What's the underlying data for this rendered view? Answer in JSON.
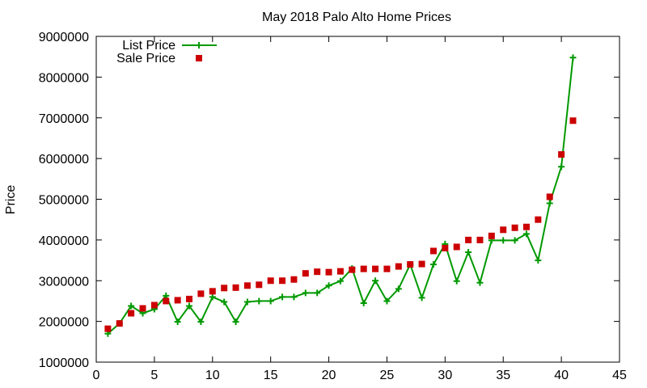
{
  "chart_data": {
    "type": "line",
    "title": "May 2018 Palo Alto Home Prices",
    "xlabel": "",
    "ylabel": "Price",
    "xlim": [
      0,
      45
    ],
    "ylim": [
      1000000,
      9000000
    ],
    "x_ticks": [
      "0",
      "5",
      "10",
      "15",
      "20",
      "25",
      "30",
      "35",
      "40",
      "45"
    ],
    "y_ticks": [
      "1000000",
      "2000000",
      "3000000",
      "4000000",
      "5000000",
      "6000000",
      "7000000",
      "8000000",
      "9000000"
    ],
    "grid": false,
    "legend_position": "top-left",
    "series": [
      {
        "name": "List Price",
        "style": "line+points",
        "color": "#009900",
        "x": [
          1,
          2,
          3,
          4,
          5,
          6,
          7,
          8,
          9,
          10,
          11,
          12,
          13,
          14,
          15,
          16,
          17,
          18,
          19,
          20,
          21,
          22,
          23,
          24,
          25,
          26,
          27,
          28,
          29,
          30,
          31,
          32,
          33,
          34,
          35,
          36,
          37,
          38,
          39,
          40,
          41
        ],
        "y": [
          1700000,
          1950000,
          2380000,
          2200000,
          2300000,
          2630000,
          1990000,
          2380000,
          1990000,
          2600000,
          2480000,
          1990000,
          2480000,
          2500000,
          2500000,
          2600000,
          2600000,
          2700000,
          2700000,
          2880000,
          2990000,
          3300000,
          2450000,
          3000000,
          2500000,
          2800000,
          3400000,
          2580000,
          3400000,
          3900000,
          2990000,
          3700000,
          2950000,
          3990000,
          3990000,
          3990000,
          4150000,
          3500000,
          4900000,
          5800000,
          8480000
        ]
      },
      {
        "name": "Sale Price",
        "style": "points",
        "color": "#cc0000",
        "x": [
          1,
          2,
          3,
          4,
          5,
          6,
          7,
          8,
          9,
          10,
          11,
          12,
          13,
          14,
          15,
          16,
          17,
          18,
          19,
          20,
          21,
          22,
          23,
          24,
          25,
          26,
          27,
          28,
          29,
          30,
          31,
          32,
          33,
          34,
          35,
          36,
          37,
          38,
          39,
          40,
          41
        ],
        "y": [
          1820000,
          1950000,
          2200000,
          2320000,
          2400000,
          2500000,
          2520000,
          2550000,
          2680000,
          2740000,
          2820000,
          2830000,
          2880000,
          2900000,
          3000000,
          3000000,
          3030000,
          3180000,
          3220000,
          3210000,
          3230000,
          3270000,
          3290000,
          3290000,
          3290000,
          3350000,
          3400000,
          3410000,
          3730000,
          3800000,
          3830000,
          4000000,
          4000000,
          4100000,
          4250000,
          4300000,
          4320000,
          4500000,
          5060000,
          6100000,
          6930000
        ]
      }
    ]
  }
}
